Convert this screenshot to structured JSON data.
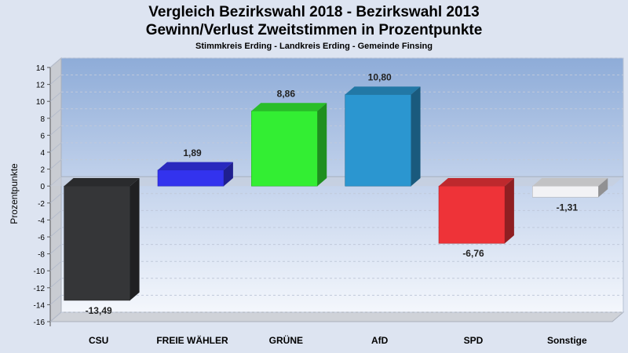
{
  "chart_data": {
    "type": "bar",
    "title_line1": "Vergleich Bezirkswahl 2018 - Bezirkswahl 2013",
    "title_line2": "Gewinn/Verlust Zweitstimmen in Prozentpunkte",
    "subtitle": "Stimmkreis Erding - Landkreis Erding - Gemeinde Finsing",
    "ylabel": "Prozentpunkte",
    "xlabel": "",
    "ylim": [
      -16,
      14
    ],
    "yticks": [
      14,
      12,
      10,
      8,
      6,
      4,
      2,
      0,
      -2,
      -4,
      -6,
      -8,
      -10,
      -12,
      -14,
      -16
    ],
    "categories": [
      "CSU",
      "FREIE WÄHLER",
      "GRÜNE",
      "AfD",
      "SPD",
      "Sonstige"
    ],
    "values": [
      -13.49,
      1.89,
      8.86,
      10.8,
      -6.76,
      -1.31
    ],
    "value_labels": [
      "-13,49",
      "1,89",
      "8,86",
      "10,80",
      "-6,76",
      "-1,31"
    ],
    "colors": [
      "#353638",
      "#3333ee",
      "#33ee33",
      "#2b96d0",
      "#ee3338",
      "#f2f2f5"
    ],
    "grid": true,
    "legend": "none"
  }
}
